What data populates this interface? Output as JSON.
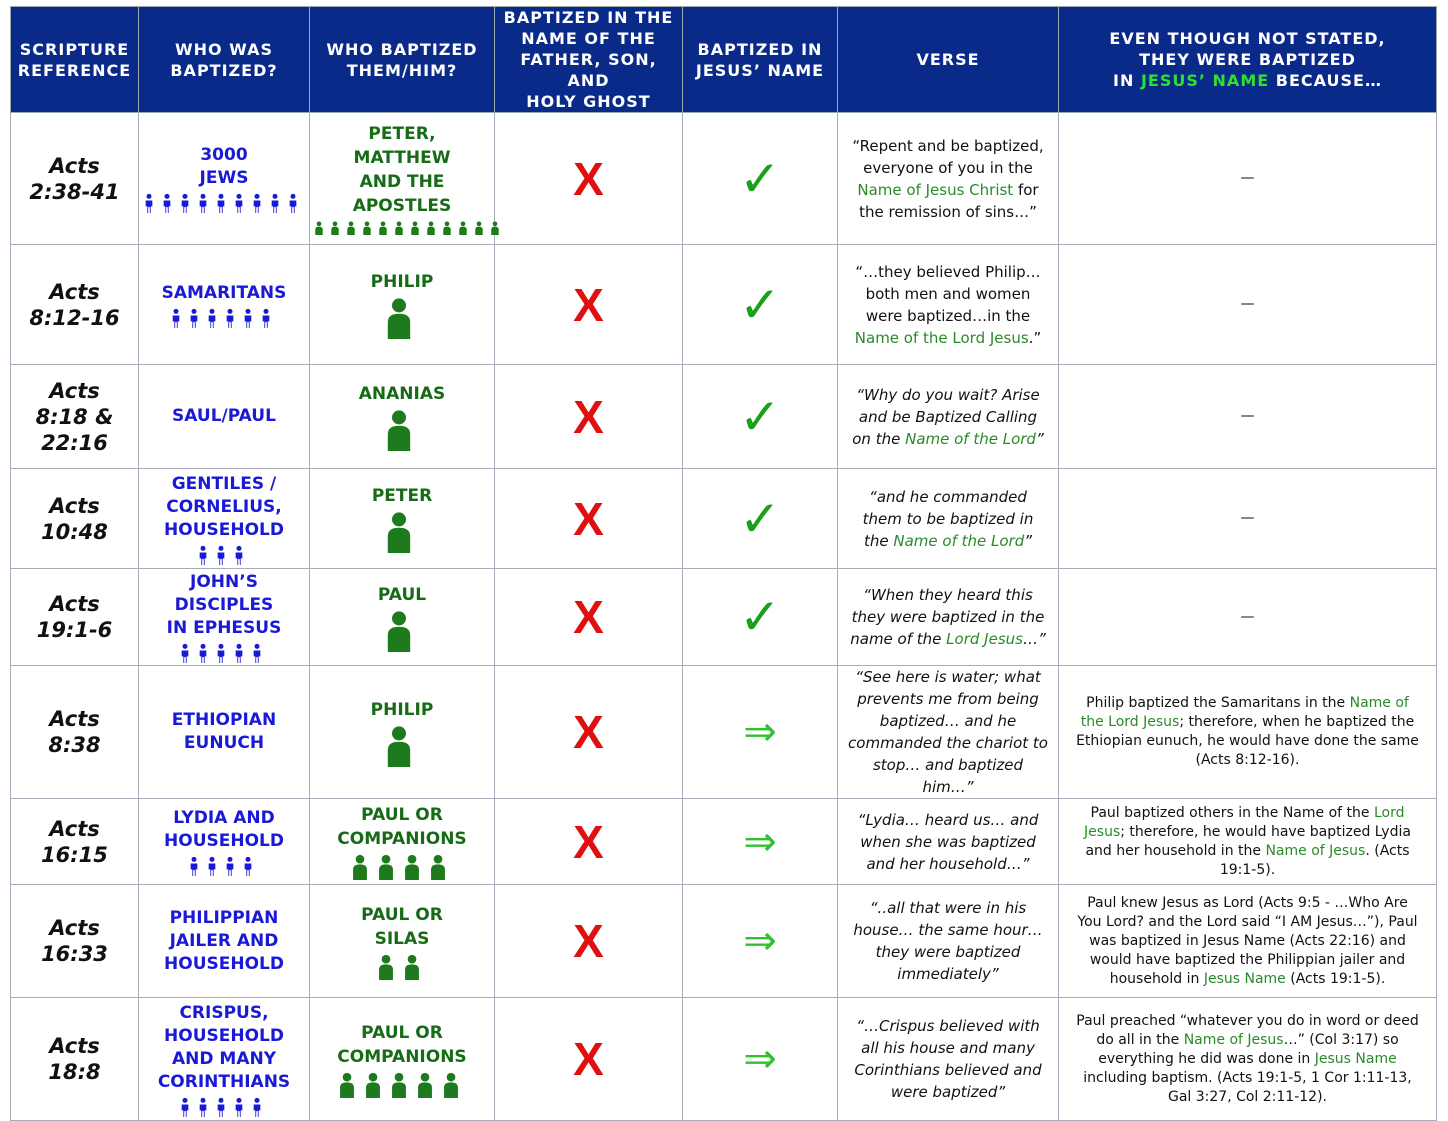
{
  "header": [
    [
      "SCRIPTURE",
      "REFERENCE"
    ],
    [
      "WHO WAS",
      "BAPTIZED?"
    ],
    [
      "WHO BAPTIZED",
      "THEM/HIM?"
    ],
    [
      "BAPTIZED IN THE",
      "NAME OF THE",
      "FATHER, SON, AND",
      "HOLY GHOST"
    ],
    [
      "BAPTIZED IN",
      "JESUS’ NAME"
    ],
    [
      "VERSE"
    ],
    [
      "EVEN THOUGH NOT STATED,",
      "THEY WERE BAPTIZED",
      [
        "IN ",
        "JESUS’ NAME",
        " BECAUSE…"
      ]
    ]
  ],
  "rows": [
    {
      "ref": [
        "Acts",
        "2:38-41"
      ],
      "who": [
        "3000",
        "JEWS"
      ],
      "by": [
        "PETER,",
        "MATTHEW",
        "AND THE",
        "APOSTLES"
      ],
      "trinity": "X",
      "jesus": "✓",
      "verse": [
        "“Repent and be baptized, everyone of you in the ",
        "Name of Jesus Christ",
        " for the remission of sins…”"
      ],
      "reason": [
        "—"
      ]
    },
    {
      "ref": [
        "Acts",
        "8:12-16"
      ],
      "who": [
        "SAMARITANS"
      ],
      "by": [
        "PHILIP"
      ],
      "trinity": "X",
      "jesus": "✓",
      "verse": [
        "“…they believed Philip…both men and women were baptized…in the ",
        "Name of the Lord Jesus",
        ".”"
      ],
      "reason": [
        "—"
      ]
    },
    {
      "ref": [
        "Acts",
        "8:18 &",
        "22:16"
      ],
      "who": [
        "SAUL/PAUL"
      ],
      "by": [
        "ANANIAS"
      ],
      "trinity": "X",
      "jesus": "✓",
      "verse": [
        "“Why do you wait? Arise and be Baptized Calling on the ",
        "Name of the Lord",
        "”"
      ],
      "reason": [
        "—"
      ]
    },
    {
      "ref": [
        "Acts",
        "10:48"
      ],
      "who": [
        "GENTILES /",
        "CORNELIUS,",
        "HOUSEHOLD"
      ],
      "by": [
        "PETER"
      ],
      "trinity": "X",
      "jesus": "✓",
      "verse": [
        "“and he commanded them to be baptized in the ",
        "Name of the Lord",
        "”"
      ],
      "reason": [
        "—"
      ]
    },
    {
      "ref": [
        "Acts",
        "19:1-6"
      ],
      "who": [
        "JOHN’S DISCIPLES",
        "IN EPHESUS"
      ],
      "by": [
        "PAUL"
      ],
      "trinity": "X",
      "jesus": "✓",
      "verse": [
        "“When they heard this they were baptized in the name of the ",
        "Lord Jesus",
        "…”"
      ],
      "reason": [
        "—"
      ]
    },
    {
      "ref": [
        "Acts",
        "8:38"
      ],
      "who": [
        "ETHIOPIAN",
        "EUNUCH"
      ],
      "by": [
        "PHILIP"
      ],
      "trinity": "X",
      "jesus": "⇒",
      "verse": [
        "“See here is water; what prevents me from being baptized… and he commanded the chariot to stop… and baptized him…”"
      ],
      "reason": [
        "Philip baptized the Samaritans in the ",
        "Name of the Lord Jesus",
        "; therefore, when he baptized the Ethiopian eunuch, he would have done the same (Acts 8:12-16)."
      ]
    },
    {
      "ref": [
        "Acts",
        "16:15"
      ],
      "who": [
        "LYDIA AND",
        "HOUSEHOLD"
      ],
      "by": [
        "PAUL OR",
        "COMPANIONS"
      ],
      "trinity": "X",
      "jesus": "⇒",
      "verse": [
        "“Lydia… heard us… and when she was baptized and her household…”"
      ],
      "reason": [
        "Paul baptized others in the Name of the ",
        "Lord Jesus",
        "; therefore, he would have baptized Lydia and her household in the ",
        "Name of Jesus",
        ".  (Acts 19:1-5)."
      ]
    },
    {
      "ref": [
        "Acts",
        "16:33"
      ],
      "who": [
        "PHILIPPIAN",
        "JAILER AND",
        "HOUSEHOLD"
      ],
      "by": [
        "PAUL OR",
        "SILAS"
      ],
      "trinity": "X",
      "jesus": "⇒",
      "verse": [
        "“..all that were in his house… the same hour… they were baptized immediately”"
      ],
      "reason": [
        "Paul knew Jesus as Lord (Acts 9:5 - …Who Are You Lord? and the Lord said “I AM Jesus…”), Paul was baptized in Jesus Name (Acts 22:16) and would have baptized the Philippian jailer and household in ",
        "Jesus Name",
        " (Acts 19:1-5)."
      ]
    },
    {
      "ref": [
        "Acts",
        "18:8"
      ],
      "who": [
        "CRISPUS,",
        "HOUSEHOLD",
        "AND MANY",
        "CORINTHIANS"
      ],
      "by": [
        "PAUL OR",
        "COMPANIONS"
      ],
      "trinity": "X",
      "jesus": "⇒",
      "verse": [
        "“…Crispus believed with all his house and many Corinthians believed and were baptized”"
      ],
      "reason": [
        "Paul preached “whatever you do in word or deed do all in the ",
        "Name of Jesus",
        "…” (Col 3:17) so everything he did was done in ",
        "Jesus Name",
        " including baptism. (Acts 19:1-5, 1 Cor 1:11-13, Gal 3:27, Col 2:11-12)."
      ]
    }
  ]
}
